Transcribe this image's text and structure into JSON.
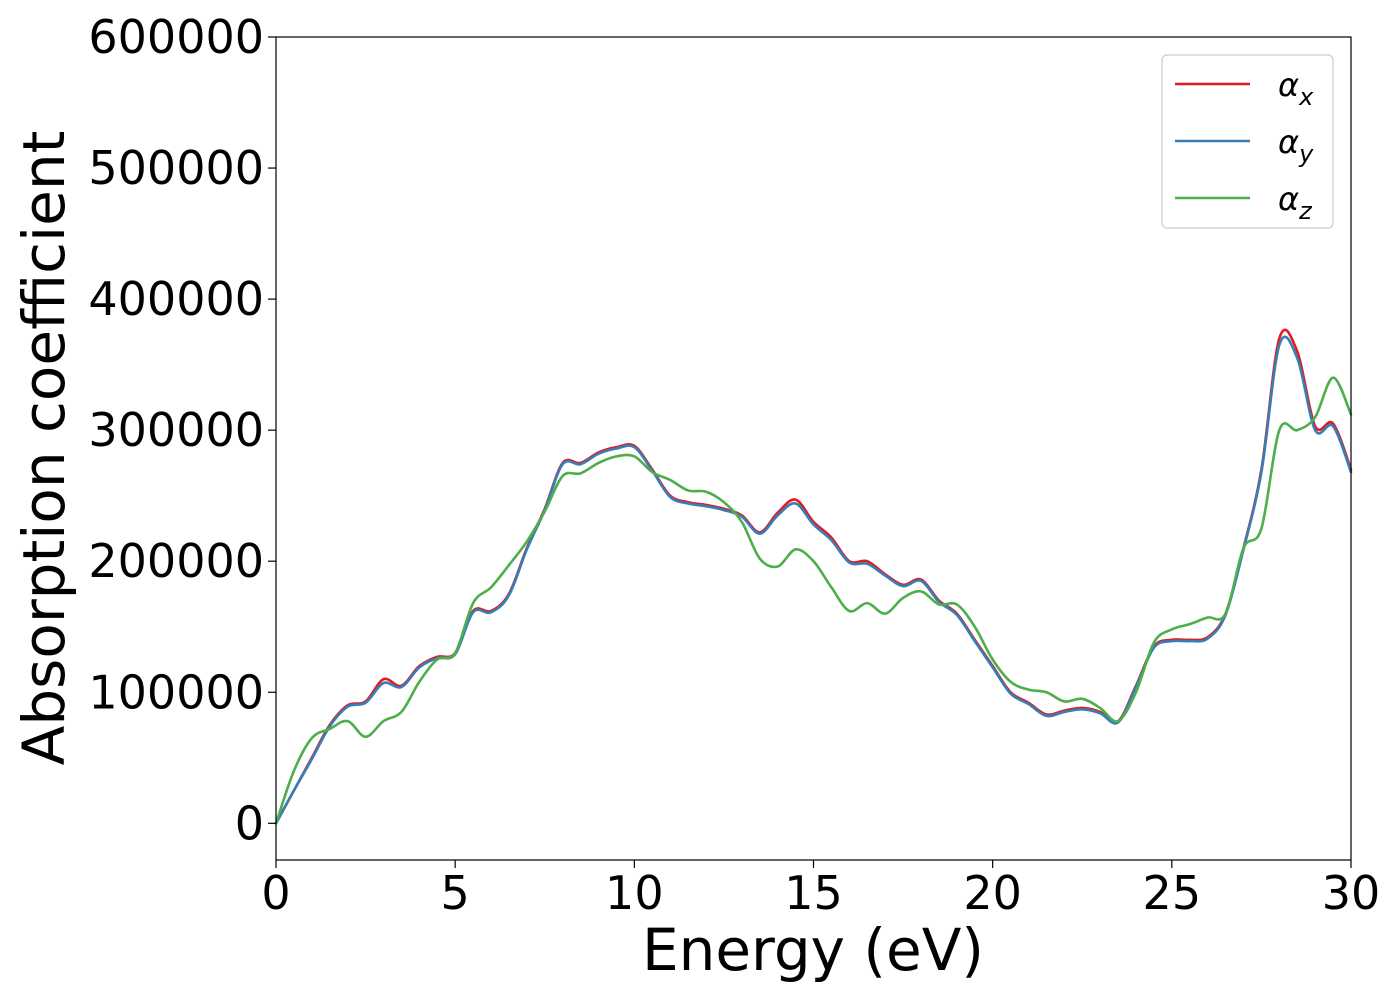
{
  "chart_data": {
    "type": "line",
    "title": "",
    "xlabel": "Energy (eV)",
    "ylabel": "Absorption coefficient",
    "xlim": [
      0,
      30
    ],
    "ylim": [
      -28000,
      600000
    ],
    "xticks": [
      0,
      5,
      10,
      15,
      20,
      25,
      30
    ],
    "yticks": [
      0,
      100000,
      200000,
      300000,
      400000,
      500000,
      600000
    ],
    "grid": false,
    "legend_position": "top-right",
    "series": [
      {
        "name": "αx",
        "legend_base": "α",
        "legend_sub": "x",
        "color": "#e41a1c",
        "x": [
          0,
          0.5,
          1,
          1.5,
          2,
          2.5,
          3,
          3.5,
          4,
          4.5,
          5,
          5.5,
          6,
          6.5,
          7,
          7.5,
          8,
          8.5,
          9,
          9.5,
          10,
          10.5,
          11,
          11.5,
          12,
          12.5,
          13,
          13.5,
          14,
          14.5,
          15,
          15.5,
          16,
          16.5,
          17,
          17.5,
          18,
          18.5,
          19,
          19.5,
          20,
          20.5,
          21,
          21.5,
          22,
          22.5,
          23,
          23.5,
          24,
          24.5,
          25,
          25.5,
          26,
          26.5,
          27,
          27.5,
          28,
          28.5,
          29,
          29.5,
          30
        ],
        "y": [
          0,
          25000,
          50000,
          75000,
          90000,
          93000,
          110000,
          105000,
          120000,
          127000,
          130000,
          162000,
          162000,
          175000,
          210000,
          240000,
          275000,
          275000,
          283000,
          287000,
          288000,
          270000,
          250000,
          245000,
          243000,
          240000,
          235000,
          222000,
          237000,
          247000,
          230000,
          218000,
          200000,
          200000,
          190000,
          182000,
          186000,
          170000,
          160000,
          140000,
          120000,
          100000,
          92000,
          83000,
          86000,
          88000,
          85000,
          78000,
          105000,
          135000,
          140000,
          140000,
          142000,
          160000,
          210000,
          270000,
          370000,
          360000,
          303000,
          305000,
          270000
        ]
      },
      {
        "name": "αy",
        "legend_base": "α",
        "legend_sub": "y",
        "color": "#377eb8",
        "x": [
          0,
          0.5,
          1,
          1.5,
          2,
          2.5,
          3,
          3.5,
          4,
          4.5,
          5,
          5.5,
          6,
          6.5,
          7,
          7.5,
          8,
          8.5,
          9,
          9.5,
          10,
          10.5,
          11,
          11.5,
          12,
          12.5,
          13,
          13.5,
          14,
          14.5,
          15,
          15.5,
          16,
          16.5,
          17,
          17.5,
          18,
          18.5,
          19,
          19.5,
          20,
          20.5,
          21,
          21.5,
          22,
          22.5,
          23,
          23.5,
          24,
          24.5,
          25,
          25.5,
          26,
          26.5,
          27,
          27.5,
          28,
          28.5,
          29,
          29.5,
          30
        ],
        "y": [
          0,
          25000,
          49000,
          74000,
          89000,
          92000,
          107000,
          104000,
          119000,
          126000,
          129000,
          161000,
          161000,
          174000,
          209000,
          239000,
          274000,
          274000,
          282000,
          286000,
          287000,
          269000,
          249000,
          244000,
          242000,
          239000,
          234000,
          221000,
          235000,
          244000,
          228000,
          216000,
          199000,
          198000,
          189000,
          181000,
          185000,
          169000,
          159000,
          139000,
          119000,
          99000,
          91000,
          82000,
          85000,
          87000,
          84000,
          77000,
          104000,
          134000,
          139000,
          139000,
          141000,
          159000,
          209000,
          268000,
          365000,
          355000,
          300000,
          303000,
          268000
        ]
      },
      {
        "name": "αz",
        "legend_base": "α",
        "legend_sub": "z",
        "color": "#4daf4a",
        "x": [
          0,
          0.5,
          1,
          1.5,
          2,
          2.5,
          3,
          3.5,
          4,
          4.5,
          5,
          5.5,
          6,
          6.5,
          7,
          7.5,
          8,
          8.5,
          9,
          9.5,
          10,
          10.5,
          11,
          11.5,
          12,
          12.5,
          13,
          13.5,
          14,
          14.5,
          15,
          15.5,
          16,
          16.5,
          17,
          17.5,
          18,
          18.5,
          19,
          19.5,
          20,
          20.5,
          21,
          21.5,
          22,
          22.5,
          23,
          23.5,
          24,
          24.5,
          25,
          25.5,
          26,
          26.5,
          27,
          27.5,
          28,
          28.5,
          29,
          29.5,
          30
        ],
        "y": [
          0,
          40000,
          65000,
          72000,
          78000,
          66000,
          78000,
          85000,
          108000,
          125000,
          130000,
          168000,
          180000,
          197000,
          215000,
          238000,
          265000,
          267000,
          275000,
          280000,
          280000,
          268000,
          262000,
          254000,
          253000,
          245000,
          230000,
          202000,
          196000,
          209000,
          200000,
          180000,
          162000,
          168000,
          160000,
          172000,
          177000,
          167000,
          167000,
          150000,
          125000,
          108000,
          102000,
          100000,
          93000,
          95000,
          88000,
          78000,
          100000,
          138000,
          148000,
          152000,
          157000,
          160000,
          210000,
          225000,
          300000,
          300000,
          310000,
          340000,
          312000
        ]
      }
    ]
  }
}
